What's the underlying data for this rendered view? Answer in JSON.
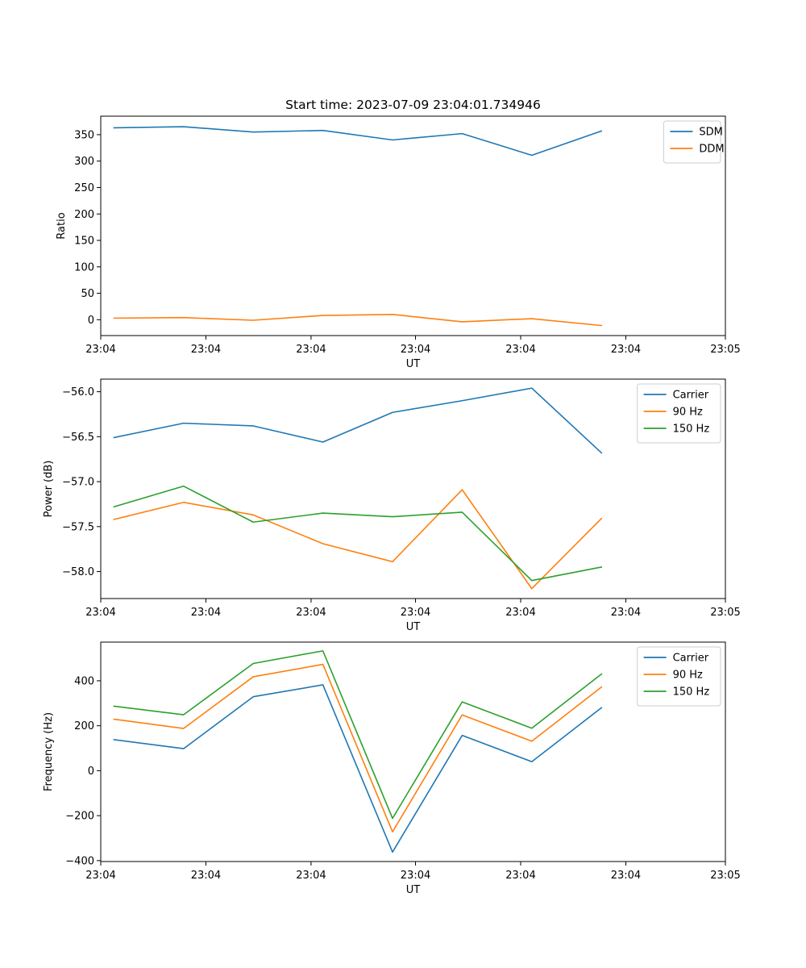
{
  "chart_data": [
    {
      "type": "line",
      "title": "Start time: 2023-07-09 23:04:01.734946",
      "xlabel": "UT",
      "ylabel": "Ratio",
      "x": [
        1,
        2,
        3,
        4,
        5,
        6,
        7,
        8
      ],
      "xlim": [
        0.81,
        9.78
      ],
      "xtick_positions": [
        0.81,
        2.32,
        3.83,
        5.33,
        6.84,
        8.35,
        9.78
      ],
      "xtick_labels": [
        "23:04",
        "23:04",
        "23:04",
        "23:04",
        "23:04",
        "23:04",
        "23:05"
      ],
      "ylim": [
        -30,
        385
      ],
      "yticks": [
        0,
        50,
        100,
        150,
        200,
        250,
        300,
        350
      ],
      "ytick_labels": [
        "0",
        "50",
        "100",
        "150",
        "200",
        "250",
        "300",
        "350"
      ],
      "legend_loc": "upper-right",
      "series": [
        {
          "name": "SDM",
          "color": "#1f77b4",
          "values": [
            363,
            365,
            355,
            358,
            340,
            352,
            311,
            357
          ]
        },
        {
          "name": "DDM",
          "color": "#ff7f0e",
          "values": [
            3,
            4,
            -1,
            8,
            10,
            -4,
            2,
            -11
          ]
        }
      ]
    },
    {
      "type": "line",
      "title": "",
      "xlabel": "UT",
      "ylabel": "Power (dB)",
      "x": [
        1,
        2,
        3,
        4,
        5,
        6,
        7,
        8
      ],
      "xlim": [
        0.81,
        9.78
      ],
      "xtick_positions": [
        0.81,
        2.32,
        3.83,
        5.33,
        6.84,
        8.35,
        9.78
      ],
      "xtick_labels": [
        "23:04",
        "23:04",
        "23:04",
        "23:04",
        "23:04",
        "23:04",
        "23:05"
      ],
      "ylim": [
        -58.3,
        -55.86
      ],
      "yticks": [
        -58.0,
        -57.5,
        -57.0,
        -56.5,
        -56.0
      ],
      "ytick_labels": [
        "−58.0",
        "−57.5",
        "−57.0",
        "−56.5",
        "−56.0"
      ],
      "legend_loc": "upper-right",
      "series": [
        {
          "name": "Carrier",
          "color": "#1f77b4",
          "values": [
            -56.51,
            -56.35,
            -56.38,
            -56.56,
            -56.23,
            -56.1,
            -55.96,
            -56.68
          ]
        },
        {
          "name": "90 Hz",
          "color": "#ff7f0e",
          "values": [
            -57.42,
            -57.23,
            -57.37,
            -57.69,
            -57.89,
            -57.09,
            -58.19,
            -57.41
          ]
        },
        {
          "name": "150 Hz",
          "color": "#2ca02c",
          "values": [
            -57.28,
            -57.05,
            -57.45,
            -57.35,
            -57.39,
            -57.34,
            -58.1,
            -57.95
          ]
        }
      ]
    },
    {
      "type": "line",
      "title": "",
      "xlabel": "UT",
      "ylabel": "Frequency (Hz)",
      "x": [
        1,
        2,
        3,
        4,
        5,
        6,
        7,
        8
      ],
      "xlim": [
        0.81,
        9.78
      ],
      "xtick_positions": [
        0.81,
        2.32,
        3.83,
        5.33,
        6.84,
        8.35,
        9.78
      ],
      "xtick_labels": [
        "23:04",
        "23:04",
        "23:04",
        "23:04",
        "23:04",
        "23:04",
        "23:05"
      ],
      "ylim": [
        -404,
        572
      ],
      "yticks": [
        -400,
        -200,
        0,
        200,
        400
      ],
      "ytick_labels": [
        "−400",
        "−200",
        "0",
        "200",
        "400"
      ],
      "legend_loc": "upper-right",
      "series": [
        {
          "name": "Carrier",
          "color": "#1f77b4",
          "values": [
            138,
            98,
            329,
            382,
            -362,
            157,
            40,
            280
          ]
        },
        {
          "name": "90 Hz",
          "color": "#ff7f0e",
          "values": [
            229,
            188,
            418,
            473,
            -272,
            248,
            131,
            372
          ]
        },
        {
          "name": "150 Hz",
          "color": "#2ca02c",
          "values": [
            287,
            249,
            477,
            533,
            -212,
            306,
            189,
            430
          ]
        }
      ]
    }
  ]
}
